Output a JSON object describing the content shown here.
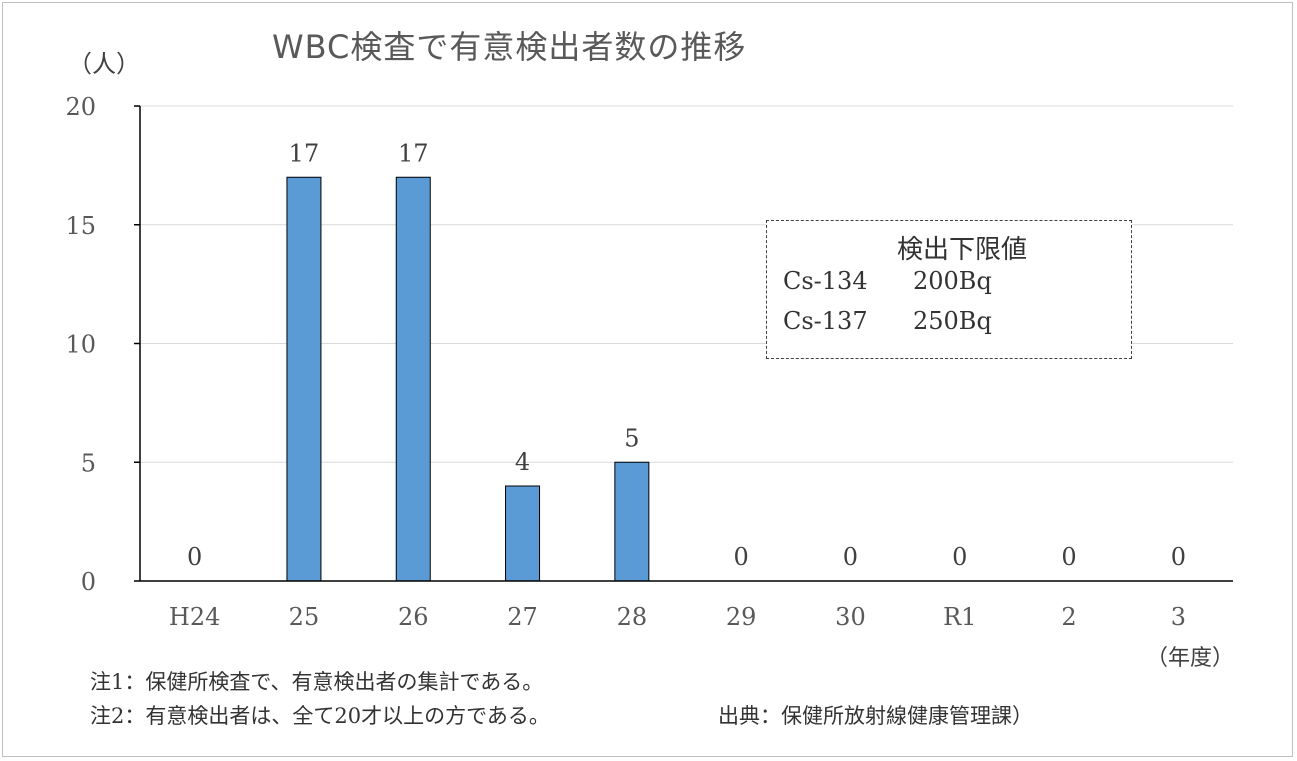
{
  "chart_data": {
    "type": "bar",
    "title": "WBC検査で有意検出者数の推移",
    "ylabel": "（人）",
    "xlabel": "（年度）",
    "categories": [
      "H24",
      "25",
      "26",
      "27",
      "28",
      "29",
      "30",
      "R1",
      "2",
      "3"
    ],
    "values": [
      0,
      17,
      17,
      4,
      5,
      0,
      0,
      0,
      0,
      0
    ],
    "ylim": [
      0,
      20
    ],
    "yticks": [
      0,
      5,
      10,
      15,
      20
    ],
    "grid": true,
    "bar_color": "#5b9bd5",
    "legend": {
      "title": "検出下限値",
      "rows": [
        {
          "isotope": "Cs-134",
          "value": "200Bq"
        },
        {
          "isotope": "Cs-137",
          "value": "250Bq"
        }
      ]
    }
  },
  "notes": [
    "注1：保健所検査で、有意検出者の集計である。",
    "注2：有意検出者は、全て20才以上の方である。"
  ],
  "source": "出典：保健所放射線健康管理課）"
}
